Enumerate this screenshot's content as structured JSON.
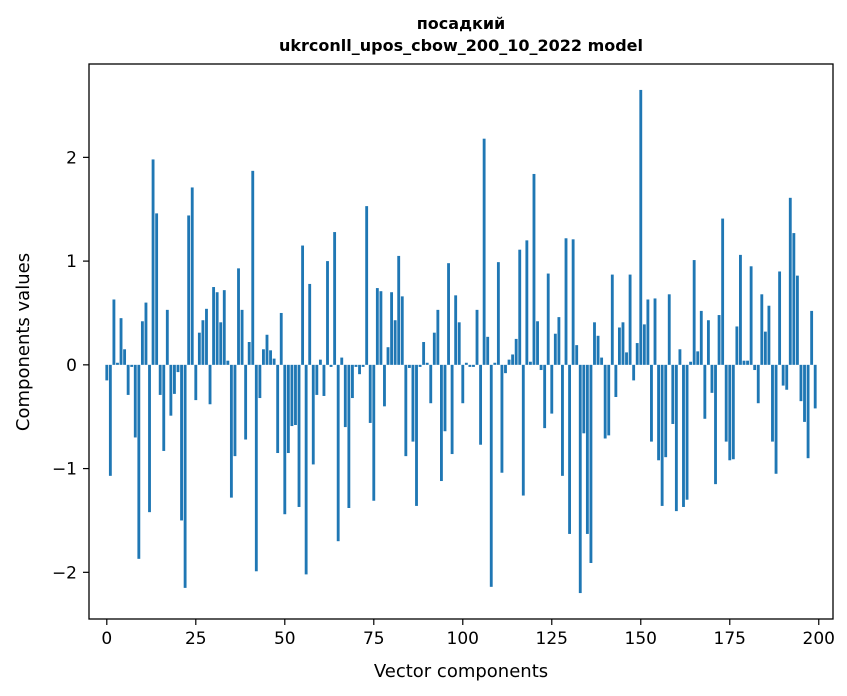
{
  "chart_data": {
    "type": "bar",
    "title": [
      "посадкий",
      "ukrconll_upos_cbow_200_10_2022 model"
    ],
    "xlabel": "Vector components",
    "ylabel": "Components values",
    "xlim": [
      -5,
      204
    ],
    "ylim": [
      -2.45,
      2.9
    ],
    "xticks": [
      0,
      25,
      50,
      75,
      100,
      125,
      150,
      175,
      200
    ],
    "yticks": [
      -2,
      -1,
      0,
      1,
      2
    ],
    "bar_color": "#1f77b4",
    "values": [
      -0.15,
      -1.07,
      0.63,
      0.02,
      0.45,
      0.15,
      -0.29,
      -0.02,
      -0.7,
      -1.87,
      0.42,
      0.6,
      -1.42,
      1.98,
      1.46,
      -0.29,
      -0.83,
      0.53,
      -0.49,
      -0.28,
      -0.07,
      -1.5,
      -2.15,
      1.44,
      1.71,
      -0.34,
      0.31,
      0.43,
      0.54,
      -0.38,
      0.75,
      0.7,
      0.41,
      0.72,
      0.04,
      -1.28,
      -0.88,
      0.93,
      0.53,
      -0.72,
      0.22,
      1.87,
      -1.99,
      -0.32,
      0.15,
      0.29,
      0.14,
      0.06,
      -0.85,
      0.5,
      -1.44,
      -0.85,
      -0.59,
      -0.58,
      -1.37,
      1.15,
      -2.02,
      0.78,
      -0.96,
      -0.29,
      0.05,
      -0.3,
      1.0,
      -0.02,
      1.28,
      -1.7,
      0.07,
      -0.6,
      -1.38,
      -0.32,
      -0.02,
      -0.09,
      -0.02,
      1.53,
      -0.56,
      -1.31,
      0.74,
      0.71,
      -0.4,
      0.17,
      0.7,
      0.43,
      1.05,
      0.66,
      -0.88,
      -0.03,
      -0.74,
      -1.36,
      -0.02,
      0.22,
      0.02,
      -0.37,
      0.31,
      0.53,
      -1.12,
      -0.64,
      0.98,
      -0.86,
      0.67,
      0.41,
      -0.37,
      0.02,
      -0.02,
      -0.02,
      0.53,
      -0.77,
      2.18,
      0.27,
      -2.14,
      0.02,
      0.99,
      -1.04,
      -0.08,
      0.05,
      0.1,
      0.25,
      1.11,
      -1.26,
      1.2,
      0.03,
      1.84,
      0.42,
      -0.05,
      -0.61,
      0.88,
      -0.47,
      0.3,
      0.46,
      -1.07,
      1.22,
      -1.63,
      1.21,
      0.19,
      -2.2,
      -0.66,
      -1.63,
      -1.91,
      0.41,
      0.28,
      0.07,
      -0.71,
      -0.68,
      0.87,
      -0.31,
      0.36,
      0.41,
      0.12,
      0.87,
      -0.15,
      0.21,
      2.65,
      0.39,
      0.63,
      -0.74,
      0.64,
      -0.92,
      -1.36,
      -0.89,
      0.68,
      -0.57,
      -1.41,
      0.15,
      -1.37,
      -1.3,
      0.03,
      1.01,
      0.13,
      0.52,
      -0.52,
      0.43,
      -0.27,
      -1.15,
      0.48,
      1.41,
      -0.74,
      -0.92,
      -0.91,
      0.37,
      1.06,
      0.04,
      0.04,
      0.95,
      -0.05,
      -0.37,
      0.68,
      0.32,
      0.57,
      -0.74,
      -1.05,
      0.9,
      -0.2,
      -0.24,
      1.61,
      1.27,
      0.86,
      -0.35,
      -0.55,
      -0.9,
      0.52,
      -0.42
    ]
  }
}
